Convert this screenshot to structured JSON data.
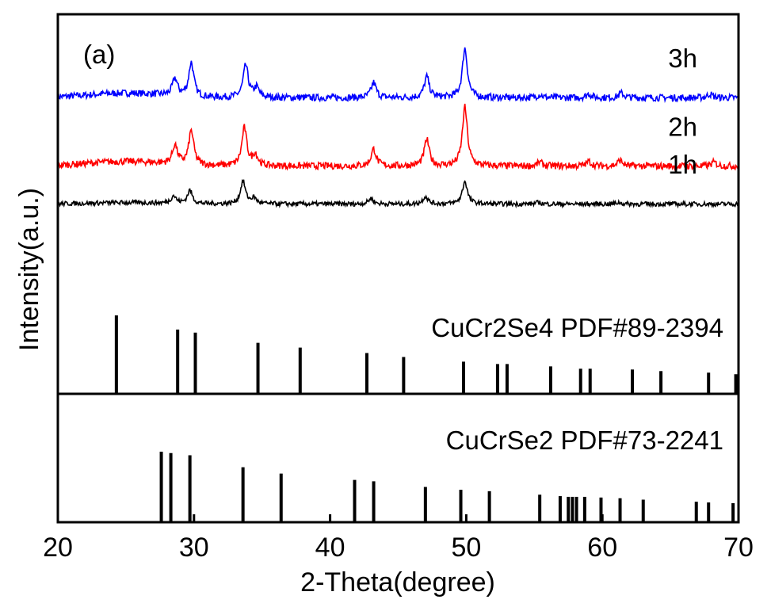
{
  "chart_data": {
    "type": "line",
    "panel_label": "(a)",
    "xlabel": "2-Theta(degree)",
    "ylabel": "Intensity(a.u.)",
    "xlim": [
      20,
      70
    ],
    "x_ticks": [
      "20",
      "30",
      "40",
      "50",
      "60",
      "70"
    ],
    "series": [
      {
        "name": "3h",
        "color": "#0000ff",
        "baseline": 0.78,
        "peaks": [
          [
            28.6,
            0.045
          ],
          [
            29.8,
            0.09
          ],
          [
            33.8,
            0.085
          ],
          [
            34.6,
            0.025
          ],
          [
            43.2,
            0.04
          ],
          [
            47.1,
            0.055
          ],
          [
            49.9,
            0.13
          ],
          [
            55.4,
            0.008
          ],
          [
            59.0,
            0.01
          ],
          [
            61.4,
            0.012
          ],
          [
            67.9,
            0.01
          ]
        ]
      },
      {
        "name": "2h",
        "color": "#ff0000",
        "baseline": 0.6,
        "peaks": [
          [
            28.6,
            0.05
          ],
          [
            29.8,
            0.09
          ],
          [
            33.7,
            0.1
          ],
          [
            34.5,
            0.03
          ],
          [
            43.2,
            0.045
          ],
          [
            47.1,
            0.07
          ],
          [
            49.9,
            0.155
          ],
          [
            55.4,
            0.01
          ],
          [
            59.0,
            0.012
          ],
          [
            61.3,
            0.015
          ],
          [
            68.2,
            0.01
          ]
        ]
      },
      {
        "name": "1h",
        "color": "#000000",
        "baseline": 0.5,
        "peaks": [
          [
            28.5,
            0.02
          ],
          [
            29.7,
            0.035
          ],
          [
            33.6,
            0.06
          ],
          [
            34.4,
            0.015
          ],
          [
            43.0,
            0.015
          ],
          [
            47.0,
            0.02
          ],
          [
            49.9,
            0.06
          ],
          [
            55.3,
            0.004
          ],
          [
            61.2,
            0.004
          ]
        ]
      }
    ],
    "references": [
      {
        "label": "CuCr2Se4  PDF#89-2394",
        "positions": [
          24.3,
          28.8,
          30.1,
          34.7,
          37.8,
          42.7,
          45.4,
          49.8,
          52.3,
          53.0,
          56.2,
          58.4,
          59.1,
          62.2,
          64.3,
          67.8,
          69.8
        ],
        "intensities": [
          1.0,
          0.82,
          0.78,
          0.65,
          0.59,
          0.52,
          0.47,
          0.41,
          0.38,
          0.38,
          0.35,
          0.32,
          0.32,
          0.31,
          0.29,
          0.27,
          0.25
        ]
      },
      {
        "label": "CuCrSe2  PDF#73-2241",
        "positions": [
          27.6,
          28.3,
          29.7,
          33.6,
          36.4,
          41.8,
          43.2,
          47.0,
          49.6,
          51.7,
          55.4,
          56.9,
          57.5,
          57.8,
          58.1,
          58.7,
          59.9,
          61.3,
          63.0,
          66.9,
          67.8,
          69.6
        ],
        "intensities": [
          1.0,
          0.98,
          0.95,
          0.78,
          0.69,
          0.6,
          0.58,
          0.5,
          0.46,
          0.44,
          0.39,
          0.37,
          0.36,
          0.36,
          0.36,
          0.36,
          0.35,
          0.34,
          0.32,
          0.29,
          0.28,
          0.27
        ]
      }
    ]
  }
}
